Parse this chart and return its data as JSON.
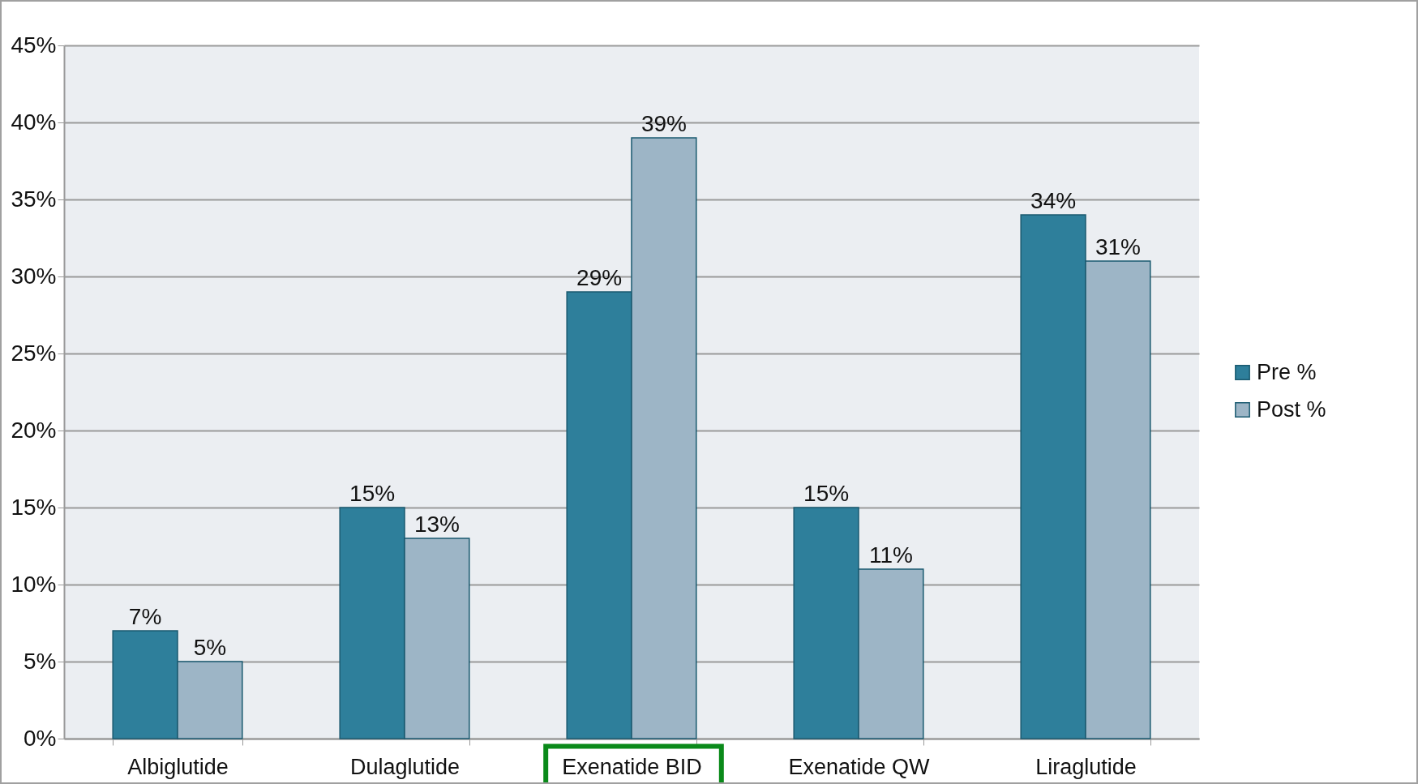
{
  "chart_data": {
    "type": "bar",
    "categories": [
      "Albiglutide",
      "Dulaglutide",
      "Exenatide BID",
      "Exenatide QW",
      "Liraglutide"
    ],
    "series": [
      {
        "name": "Pre %",
        "color": "#2e7f9b",
        "values": [
          7,
          15,
          29,
          15,
          34
        ],
        "value_labels": [
          "7%",
          "15%",
          "29%",
          "15%",
          "34%"
        ]
      },
      {
        "name": "Post %",
        "color": "#9db5c6",
        "values": [
          5,
          13,
          39,
          11,
          31
        ],
        "value_labels": [
          "5%",
          "13%",
          "39%",
          "11%",
          "31%"
        ]
      }
    ],
    "ylim": [
      0,
      45
    ],
    "yticks": [
      {
        "value": 0,
        "label": "0%"
      },
      {
        "value": 5,
        "label": "5%"
      },
      {
        "value": 10,
        "label": "10%"
      },
      {
        "value": 15,
        "label": "15%"
      },
      {
        "value": 20,
        "label": "20%"
      },
      {
        "value": 25,
        "label": "25%"
      },
      {
        "value": 30,
        "label": "30%"
      },
      {
        "value": 35,
        "label": "35%"
      },
      {
        "value": 40,
        "label": "40%"
      },
      {
        "value": 45,
        "label": "45%"
      }
    ],
    "grid": "y",
    "legend": "right"
  }
}
